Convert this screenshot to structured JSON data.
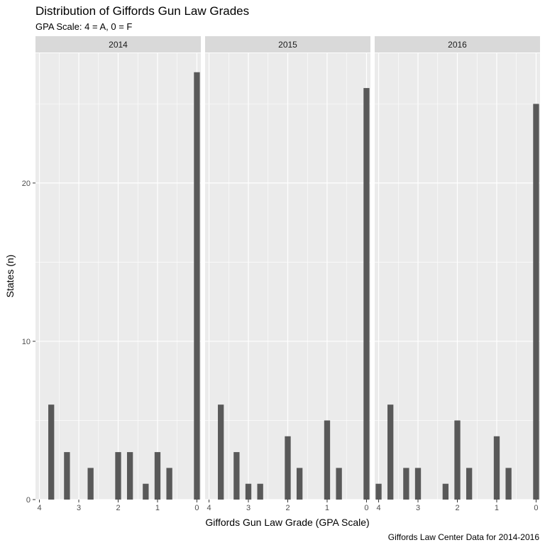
{
  "chart_data": {
    "type": "bar",
    "title": "Distribution of Giffords Gun Law Grades",
    "subtitle": "GPA Scale: 4 = A, 0 = F",
    "caption": "Giffords Law Center Data for 2014-2016",
    "xlabel": "Giffords Gun Law Grade (GPA Scale)",
    "ylabel": "States (n)",
    "x_reversed": true,
    "xlim": [
      4.1,
      -0.1
    ],
    "ylim": [
      0,
      28.2
    ],
    "x_ticks": [
      4,
      3,
      2,
      1,
      0
    ],
    "y_ticks": [
      0,
      10,
      20
    ],
    "bar_width": 0.15,
    "bar_color": "#595959",
    "panel_background": "#ebebeb",
    "strip_background": "#d9d9d9",
    "grid": true,
    "panels": [
      {
        "label": "2014",
        "x": [
          3.7,
          3.3,
          2.7,
          2.0,
          1.7,
          1.3,
          1.0,
          0.7,
          0.0
        ],
        "values": [
          6,
          3,
          2,
          3,
          3,
          1,
          3,
          2,
          27
        ]
      },
      {
        "label": "2015",
        "x": [
          3.7,
          3.3,
          3.0,
          2.7,
          2.0,
          1.7,
          1.0,
          0.7,
          0.0
        ],
        "values": [
          6,
          3,
          1,
          1,
          4,
          2,
          5,
          2,
          26
        ]
      },
      {
        "label": "2016",
        "x": [
          4.0,
          3.7,
          3.3,
          3.0,
          2.3,
          2.0,
          1.7,
          1.0,
          0.7,
          0.0
        ],
        "values": [
          1,
          6,
          2,
          2,
          1,
          5,
          2,
          4,
          2,
          25
        ]
      }
    ]
  }
}
